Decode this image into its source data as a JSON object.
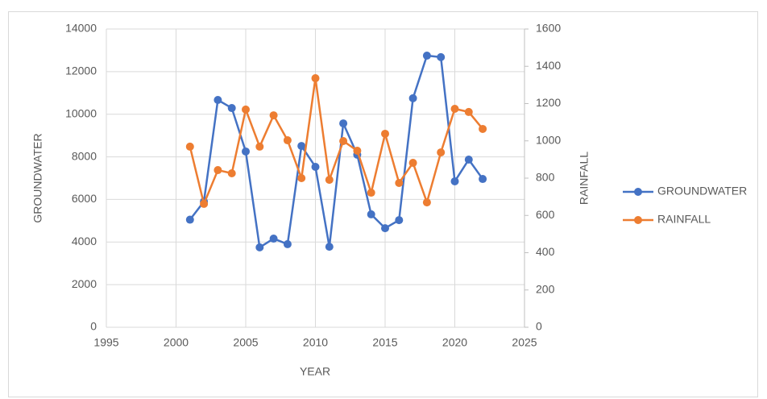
{
  "chart_data": {
    "type": "line",
    "x_label": "YEAR",
    "y_label": "GROUNDWATER",
    "y2_label": "RAINFALL",
    "x": [
      2001,
      2002,
      2003,
      2004,
      2005,
      2006,
      2007,
      2008,
      2009,
      2010,
      2011,
      2012,
      2013,
      2014,
      2015,
      2016,
      2017,
      2018,
      2019,
      2020,
      2021,
      2022
    ],
    "series": [
      {
        "name": "GROUNDWATER",
        "color": "#4472c4",
        "values": [
          5050,
          5900,
          10670,
          10290,
          8250,
          3750,
          4160,
          3900,
          8510,
          7530,
          3780,
          9570,
          8100,
          5300,
          4650,
          5030,
          10750,
          12750,
          12680,
          6850,
          7870,
          6960
        ]
      },
      {
        "name": "RAINFALL",
        "color": "#ed7d31",
        "axis": "y2",
        "values": [
          969,
          662,
          843,
          826,
          1168,
          969,
          1137,
          1003,
          800,
          1336,
          791,
          999,
          947,
          722,
          1038,
          774,
          882,
          670,
          938,
          1172,
          1155,
          1064
        ]
      }
    ],
    "xlim": [
      1995,
      2025
    ],
    "xticks": [
      1995,
      2000,
      2005,
      2010,
      2015,
      2020,
      2025
    ],
    "ylim": [
      0,
      14000
    ],
    "yticks": [
      0,
      2000,
      4000,
      6000,
      8000,
      10000,
      12000,
      14000
    ],
    "y2lim": [
      0,
      1600
    ],
    "y2ticks": [
      0,
      200,
      400,
      600,
      800,
      1000,
      1200,
      1400,
      1600
    ],
    "grid": true,
    "legend": "right"
  }
}
